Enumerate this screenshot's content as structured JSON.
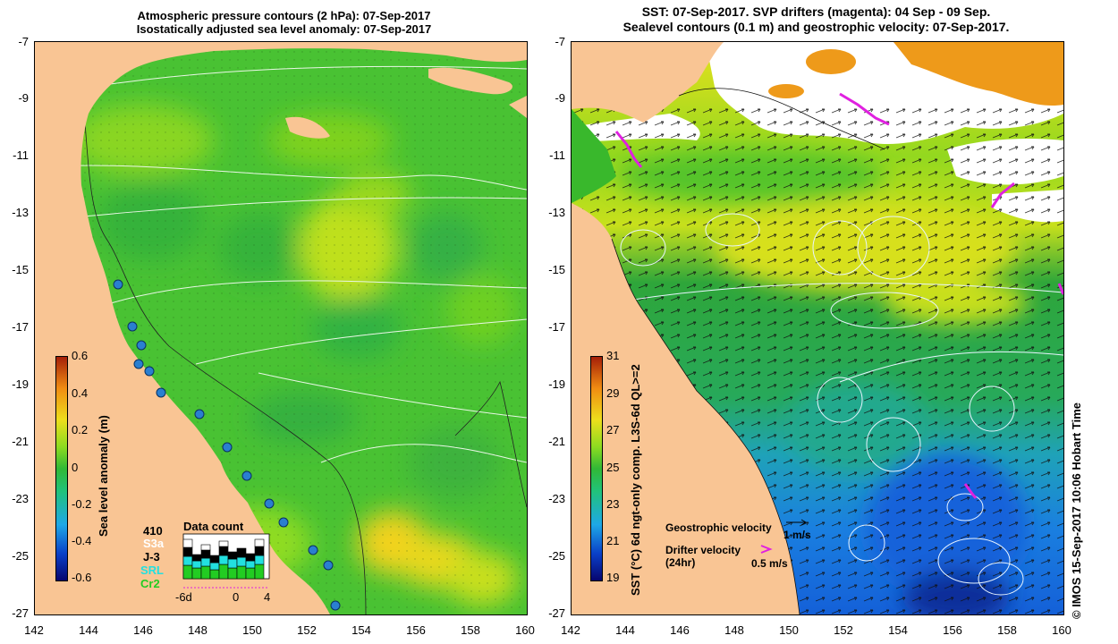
{
  "left_panel": {
    "title_line1": "Atmospheric pressure contours (2 hPa): 07-Sep-2017",
    "title_line2": "Isostatically adjusted sea level anomaly: 07-Sep-2017",
    "colorbar": {
      "label": "Sea level anomaly (m)",
      "ticks": [
        "0.6",
        "0.4",
        "0.2",
        "0",
        "-0.2",
        "-0.4",
        "-0.6"
      ]
    },
    "data_count": {
      "title": "Data count",
      "total": "410",
      "satellites": [
        {
          "name": "S3a",
          "color": "#ffffff"
        },
        {
          "name": "J-3",
          "color": "#000000"
        },
        {
          "name": "SRL",
          "color": "#22e0e0"
        },
        {
          "name": "Cr2",
          "color": "#22cc22"
        }
      ],
      "axis_ticks": [
        "-6d",
        "0",
        "4"
      ]
    },
    "tide_gauge_color": "#2a7fd0"
  },
  "right_panel": {
    "title_line1": "SST: 07-Sep-2017. SVP drifters (magenta): 04 Sep - 09 Sep.",
    "title_line2": "Sealevel contours (0.1 m) and geostrophic velocity: 07-Sep-2017.",
    "colorbar": {
      "label": "SST (°C) 6d ngt-only comp. L3S-6d QL>=2",
      "ticks": [
        "31",
        "29",
        "27",
        "25",
        "23",
        "21",
        "19"
      ]
    },
    "legend": {
      "geostrophic_label": "Geostrophic velocity",
      "geostrophic_scale": "1 m/s",
      "drifter_label_line1": "Drifter velocity",
      "drifter_label_line2": "(24hr)",
      "drifter_scale": "0.5 m/s",
      "drifter_color": "#e020e0"
    },
    "credit": "© IMOS 15-Sep-2017 10:06 Hobart Time"
  },
  "axes": {
    "x_ticks": [
      "142",
      "144",
      "146",
      "148",
      "150",
      "152",
      "154",
      "156",
      "158",
      "160"
    ],
    "y_ticks": [
      "-7",
      "-9",
      "-11",
      "-13",
      "-15",
      "-17",
      "-19",
      "-21",
      "-23",
      "-25",
      "-27"
    ]
  },
  "colors": {
    "land": "#f9c594",
    "sla_base": "#49c233",
    "sst_north": "#cde01d",
    "sst_mid": "#2eae3a",
    "sst_south": "#1e8ee0"
  }
}
